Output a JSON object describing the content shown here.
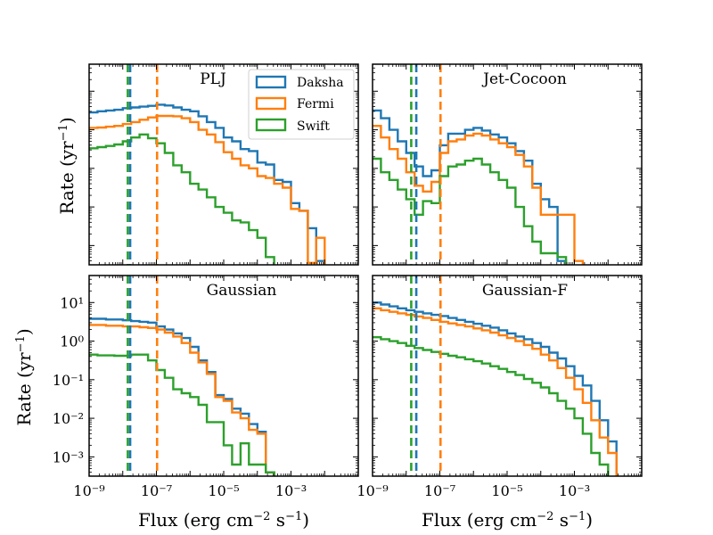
{
  "figure": {
    "ylabel": "Rate (yr",
    "ylabel_sup": "−1",
    "ylabel_close": ")",
    "xlabel": "Flux (erg cm",
    "xlabel_sup1": "−2",
    "xlabel_mid": " s",
    "xlabel_sup2": "−1",
    "xlabel_close": ")"
  },
  "legend": {
    "items": [
      {
        "label": "Daksha",
        "color": "#1f77b4"
      },
      {
        "label": "Fermi",
        "color": "#ff7f0e"
      },
      {
        "label": "Swift",
        "color": "#2ca02c"
      }
    ]
  },
  "chart_data": [
    {
      "type": "histogram-step",
      "title": "PLJ",
      "xscale": "log",
      "yscale": "log",
      "xlim": [
        -9,
        -1
      ],
      "ylim": [
        -3.5,
        1.7
      ],
      "xticks": [],
      "yticks": [],
      "thresholds": [
        {
          "series": "Swift",
          "x": -7.85
        },
        {
          "series": "Daksha",
          "x": -7.78
        },
        {
          "series": "Fermi",
          "x": -6.98
        }
      ],
      "series": [
        {
          "name": "Daksha",
          "color": "#1f77b4",
          "x_edges_start": -9,
          "bin_width": 0.25,
          "log10_values": [
            0.45,
            0.48,
            0.5,
            0.52,
            0.56,
            0.58,
            0.6,
            0.62,
            0.65,
            0.63,
            0.58,
            0.52,
            0.48,
            0.35,
            0.2,
            0.05,
            -0.2,
            -0.3,
            -0.5,
            -0.55,
            -0.85,
            -0.9,
            -1.3,
            -1.35,
            -1.9,
            -2.1,
            -2.55,
            -3.4
          ]
        },
        {
          "name": "Fermi",
          "color": "#ff7f0e",
          "x_edges_start": -9,
          "bin_width": 0.25,
          "log10_values": [
            0.05,
            0.06,
            0.08,
            0.1,
            0.15,
            0.2,
            0.26,
            0.32,
            0.36,
            0.36,
            0.35,
            0.3,
            0.2,
            0.0,
            -0.12,
            -0.32,
            -0.58,
            -0.75,
            -0.92,
            -1.0,
            -1.2,
            -1.25,
            -1.4,
            -1.5,
            -2.05,
            -2.1,
            -3.45,
            -2.8
          ]
        },
        {
          "name": "Swift",
          "color": "#2ca02c",
          "x_edges_start": -9,
          "bin_width": 0.25,
          "log10_values": [
            -0.48,
            -0.45,
            -0.42,
            -0.38,
            -0.3,
            -0.2,
            -0.12,
            -0.22,
            -0.35,
            -0.6,
            -0.92,
            -1.1,
            -1.4,
            -1.55,
            -1.75,
            -2.0,
            -2.15,
            -2.35,
            -2.4,
            -2.6,
            -2.8,
            -3.3
          ]
        }
      ]
    },
    {
      "type": "histogram-step",
      "title": "Jet-Cocoon",
      "xscale": "log",
      "yscale": "log",
      "xlim": [
        -9,
        -1
      ],
      "ylim": [
        -3.5,
        1.7
      ],
      "xticks": [],
      "yticks": [],
      "thresholds": [
        {
          "series": "Swift",
          "x": -7.85
        },
        {
          "series": "Daksha",
          "x": -7.7
        },
        {
          "series": "Fermi",
          "x": -6.98
        }
      ],
      "series": [
        {
          "name": "Daksha",
          "color": "#1f77b4",
          "x_edges_start": -9,
          "bin_width": 0.25,
          "log10_values": [
            0.5,
            0.3,
            0.0,
            -0.3,
            -0.6,
            -0.95,
            -1.2,
            -1.05,
            -0.4,
            -0.1,
            -0.1,
            0.0,
            0.05,
            -0.02,
            -0.12,
            -0.2,
            -0.35,
            -0.55,
            -0.8,
            -1.4,
            -1.8,
            -2.0,
            -3.4
          ]
        },
        {
          "name": "Fermi",
          "color": "#ff7f0e",
          "x_edges_start": -9,
          "bin_width": 0.25,
          "log10_values": [
            0.1,
            -0.2,
            -0.5,
            -0.75,
            -1.1,
            -1.45,
            -1.6,
            -1.35,
            -0.6,
            -0.3,
            -0.25,
            -0.15,
            -0.1,
            -0.15,
            -0.25,
            -0.35,
            -0.45,
            -0.65,
            -0.95,
            -1.5,
            -2.2,
            -2.2,
            -2.2,
            -2.2,
            -3.4
          ]
        },
        {
          "name": "Swift",
          "color": "#2ca02c",
          "x_edges_start": -9,
          "bin_width": 0.25,
          "log10_values": [
            -0.75,
            -1.1,
            -1.3,
            -1.55,
            -1.8,
            -2.2,
            -1.85,
            -1.9,
            -1.2,
            -0.95,
            -0.9,
            -0.8,
            -0.75,
            -0.9,
            -1.1,
            -1.3,
            -1.5,
            -2.0,
            -2.5,
            -2.9,
            -3.2,
            -3.2,
            -3.3
          ]
        }
      ]
    },
    {
      "type": "histogram-step",
      "title": "Gaussian",
      "xscale": "log",
      "yscale": "log",
      "xlim": [
        -9,
        -1
      ],
      "ylim": [
        -3.5,
        1.7
      ],
      "xticks": [
        "10^-9",
        "10^-7",
        "10^-5",
        "10^-3"
      ],
      "yticks": [
        "10^1",
        "10^0",
        "10^-1",
        "10^-2",
        "10^-3"
      ],
      "thresholds": [
        {
          "series": "Swift",
          "x": -7.85
        },
        {
          "series": "Daksha",
          "x": -7.78
        },
        {
          "series": "Fermi",
          "x": -6.98
        }
      ],
      "series": [
        {
          "name": "Daksha",
          "color": "#1f77b4",
          "x_edges_start": -9,
          "bin_width": 0.25,
          "log10_values": [
            0.58,
            0.58,
            0.56,
            0.56,
            0.54,
            0.52,
            0.5,
            0.48,
            0.38,
            0.3,
            0.2,
            0.08,
            -0.15,
            -0.5,
            -0.8,
            -1.4,
            -1.5,
            -1.75,
            -1.88,
            -2.15,
            -2.35,
            -3.4
          ]
        },
        {
          "name": "Fermi",
          "color": "#ff7f0e",
          "x_edges_start": -9,
          "bin_width": 0.25,
          "log10_values": [
            0.42,
            0.42,
            0.4,
            0.4,
            0.38,
            0.38,
            0.36,
            0.34,
            0.3,
            0.22,
            0.12,
            -0.05,
            -0.3,
            -0.55,
            -0.85,
            -1.45,
            -1.55,
            -1.85,
            -2.0,
            -2.3,
            -2.4,
            -3.4
          ]
        },
        {
          "name": "Swift",
          "color": "#2ca02c",
          "x_edges_start": -9,
          "bin_width": 0.25,
          "log10_values": [
            -0.35,
            -0.37,
            -0.37,
            -0.38,
            -0.38,
            -0.35,
            -0.35,
            -0.5,
            -0.75,
            -0.95,
            -1.25,
            -1.35,
            -1.45,
            -1.65,
            -2.1,
            -2.1,
            -2.7,
            -3.2,
            -2.65,
            -3.2,
            -3.2,
            -3.4
          ]
        }
      ]
    },
    {
      "type": "histogram-step",
      "title": "Gaussian-F",
      "xscale": "log",
      "yscale": "log",
      "xlim": [
        -9,
        -1
      ],
      "ylim": [
        -3.5,
        1.7
      ],
      "xticks": [
        "10^-9",
        "10^-7",
        "10^-5",
        "10^-3"
      ],
      "yticks": [],
      "thresholds": [
        {
          "series": "Swift",
          "x": -7.85
        },
        {
          "series": "Daksha",
          "x": -7.7
        },
        {
          "series": "Fermi",
          "x": -6.98
        }
      ],
      "series": [
        {
          "name": "Daksha",
          "color": "#1f77b4",
          "x_edges_start": -9,
          "bin_width": 0.25,
          "log10_values": [
            1.0,
            0.95,
            0.9,
            0.85,
            0.8,
            0.76,
            0.72,
            0.68,
            0.65,
            0.6,
            0.55,
            0.5,
            0.45,
            0.4,
            0.35,
            0.28,
            0.2,
            0.12,
            0.05,
            -0.05,
            -0.15,
            -0.3,
            -0.45,
            -0.65,
            -0.9,
            -1.15,
            -1.55,
            -2.05,
            -2.6
          ]
        },
        {
          "name": "Fermi",
          "color": "#ff7f0e",
          "x_edges_start": -9,
          "bin_width": 0.25,
          "log10_values": [
            0.85,
            0.8,
            0.76,
            0.72,
            0.68,
            0.64,
            0.6,
            0.55,
            0.5,
            0.46,
            0.42,
            0.38,
            0.33,
            0.28,
            0.22,
            0.15,
            0.08,
            0.0,
            -0.1,
            -0.2,
            -0.35,
            -0.5,
            -0.7,
            -0.95,
            -1.25,
            -1.6,
            -2.05,
            -2.5,
            -2.9
          ]
        },
        {
          "name": "Swift",
          "color": "#2ca02c",
          "x_edges_start": -9,
          "bin_width": 0.25,
          "log10_values": [
            0.1,
            0.05,
            0.0,
            -0.05,
            -0.12,
            -0.18,
            -0.23,
            -0.28,
            -0.33,
            -0.38,
            -0.42,
            -0.47,
            -0.52,
            -0.58,
            -0.65,
            -0.72,
            -0.8,
            -0.88,
            -0.98,
            -1.08,
            -1.2,
            -1.35,
            -1.55,
            -1.75,
            -2.0,
            -2.4,
            -2.9,
            -3.2
          ]
        }
      ]
    }
  ]
}
